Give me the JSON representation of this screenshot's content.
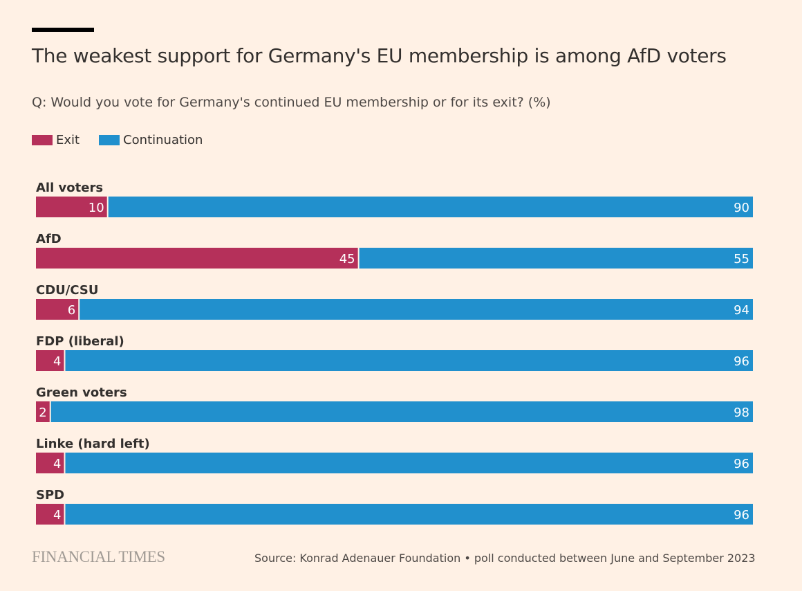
{
  "title": "The weakest support for Germany's EU membership is among AfD voters",
  "subtitle": "Q: Would you vote for Germany's continued EU membership or for its exit? (%)",
  "source": "Source: Konrad Adenauer Foundation • poll conducted between June and September 2023",
  "logo": "FINANCIAL TIMES",
  "colors": {
    "background": "#fff1e5",
    "exit": "#b5305a",
    "continuation": "#2190cd"
  },
  "chart_data": {
    "type": "bar",
    "orientation": "horizontal",
    "stacked": true,
    "title": "The weakest support for Germany's EU membership is among AfD voters",
    "subtitle": "Q: Would you vote for Germany's continued EU membership or for its exit? (%)",
    "xlim": [
      0,
      100
    ],
    "grid": false,
    "legend_position": "top-left",
    "categories": [
      "All voters",
      "AfD",
      "CDU/CSU",
      "FDP (liberal)",
      "Green voters",
      "Linke (hard left)",
      "SPD"
    ],
    "series": [
      {
        "name": "Exit",
        "color": "#b5305a",
        "values": [
          10,
          45,
          6,
          4,
          2,
          4,
          4
        ]
      },
      {
        "name": "Continuation",
        "color": "#2190cd",
        "values": [
          90,
          55,
          94,
          96,
          98,
          96,
          96
        ]
      }
    ]
  }
}
